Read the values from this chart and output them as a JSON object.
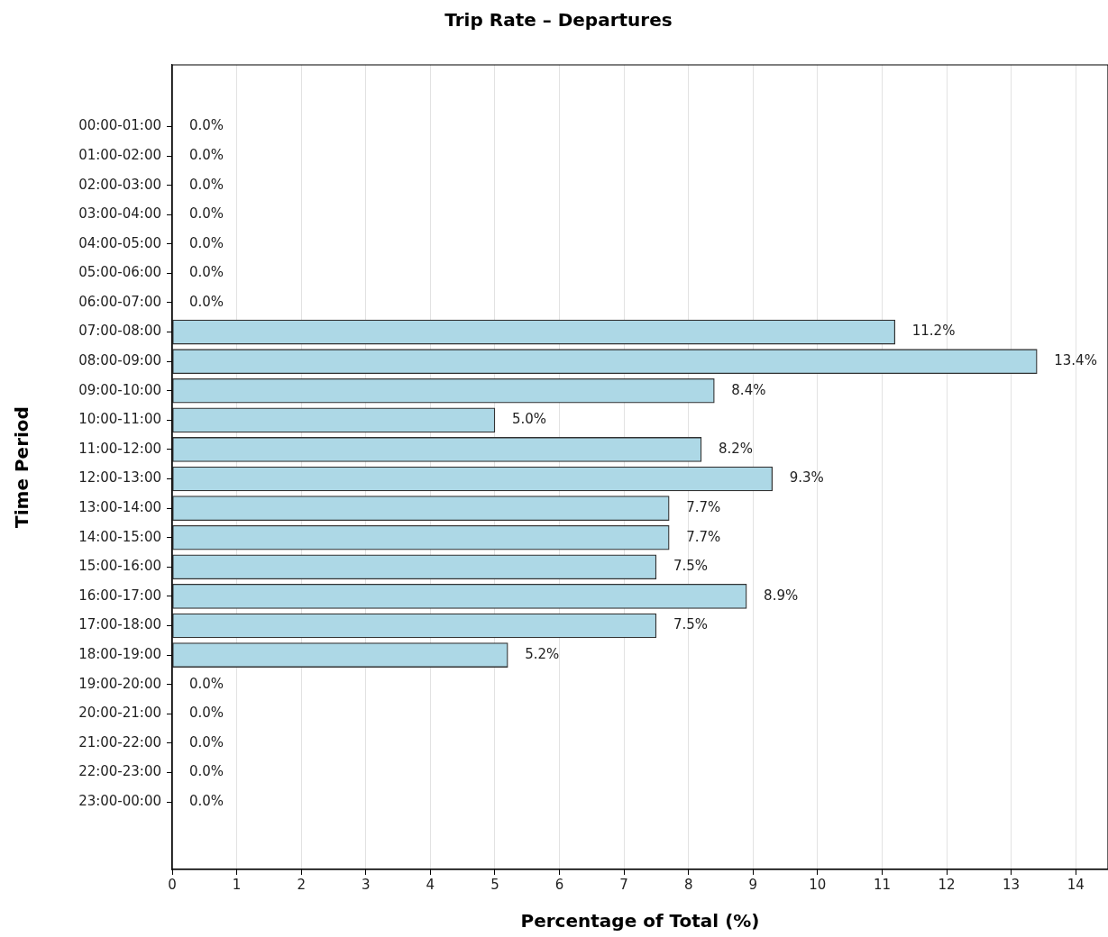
{
  "chart_data": {
    "type": "bar",
    "orientation": "horizontal",
    "title": "Trip Rate – Departures",
    "xlabel": "Percentage of Total (%)",
    "ylabel": "Time Period",
    "categories": [
      "00:00-01:00",
      "01:00-02:00",
      "02:00-03:00",
      "03:00-04:00",
      "04:00-05:00",
      "05:00-06:00",
      "06:00-07:00",
      "07:00-08:00",
      "08:00-09:00",
      "09:00-10:00",
      "10:00-11:00",
      "11:00-12:00",
      "12:00-13:00",
      "13:00-14:00",
      "14:00-15:00",
      "15:00-16:00",
      "16:00-17:00",
      "17:00-18:00",
      "18:00-19:00",
      "19:00-20:00",
      "20:00-21:00",
      "21:00-22:00",
      "22:00-23:00",
      "23:00-00:00"
    ],
    "values": [
      0,
      0,
      0,
      0,
      0,
      0,
      0,
      11.2,
      13.4,
      8.4,
      5.0,
      8.2,
      9.3,
      7.7,
      7.7,
      7.5,
      8.9,
      7.5,
      5.2,
      0,
      0,
      0,
      0,
      0
    ],
    "value_labels": [
      "0.0%",
      "0.0%",
      "0.0%",
      "0.0%",
      "0.0%",
      "0.0%",
      "0.0%",
      "11.2%",
      "13.4%",
      "8.4%",
      "5.0%",
      "8.2%",
      "9.3%",
      "7.7%",
      "7.7%",
      "7.5%",
      "8.9%",
      "7.5%",
      "5.2%",
      "0.0%",
      "0.0%",
      "0.0%",
      "0.0%",
      "0.0%"
    ],
    "color": "#add8e6",
    "xlim": [
      0,
      14.5
    ],
    "xticks": [
      0,
      1,
      2,
      3,
      4,
      5,
      6,
      7,
      8,
      9,
      10,
      11,
      12,
      13,
      14
    ],
    "grid": "x"
  }
}
